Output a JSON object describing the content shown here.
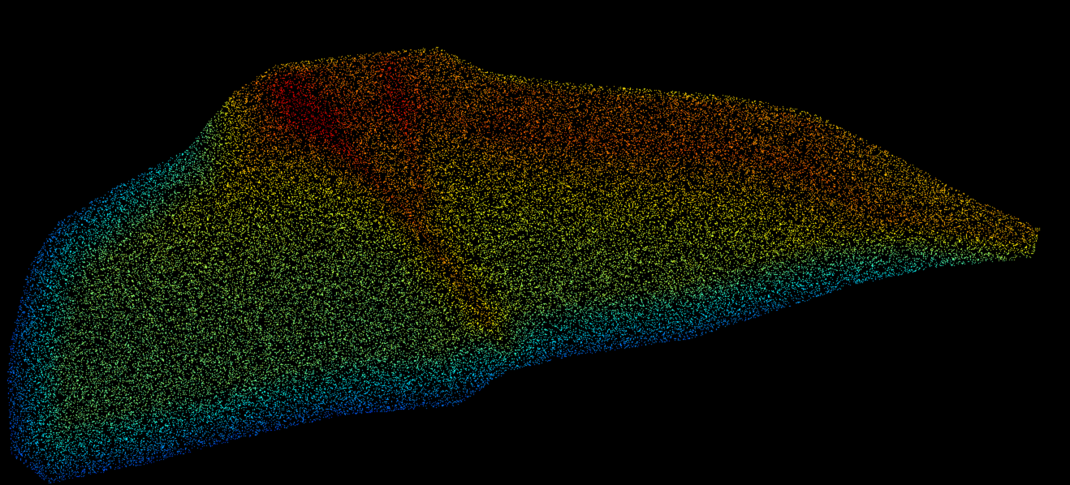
{
  "scene": {
    "background": "#000000",
    "colormap": "jet"
  }
}
